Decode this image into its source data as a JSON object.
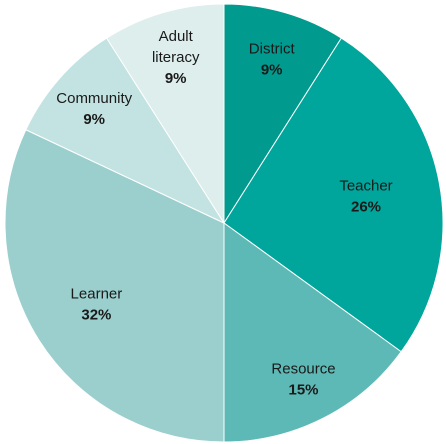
{
  "chart_data": {
    "type": "pie",
    "title": "",
    "legend": "none",
    "slices": [
      {
        "label_lines": [
          "District"
        ],
        "value": 9,
        "value_label": "9%",
        "color": "#009B8E"
      },
      {
        "label_lines": [
          "Teacher"
        ],
        "value": 26,
        "value_label": "26%",
        "color": "#00A59B"
      },
      {
        "label_lines": [
          "Resource"
        ],
        "value": 15,
        "value_label": "15%",
        "color": "#5DB9B5"
      },
      {
        "label_lines": [
          "Learner"
        ],
        "value": 32,
        "value_label": "32%",
        "color": "#9ACFCE"
      },
      {
        "label_lines": [
          "Community"
        ],
        "value": 9,
        "value_label": "9%",
        "color": "#C2E3E1"
      },
      {
        "label_lines": [
          "Adult",
          "literacy"
        ],
        "value": 9,
        "value_label": "9%",
        "color": "#DDEEED"
      }
    ]
  }
}
